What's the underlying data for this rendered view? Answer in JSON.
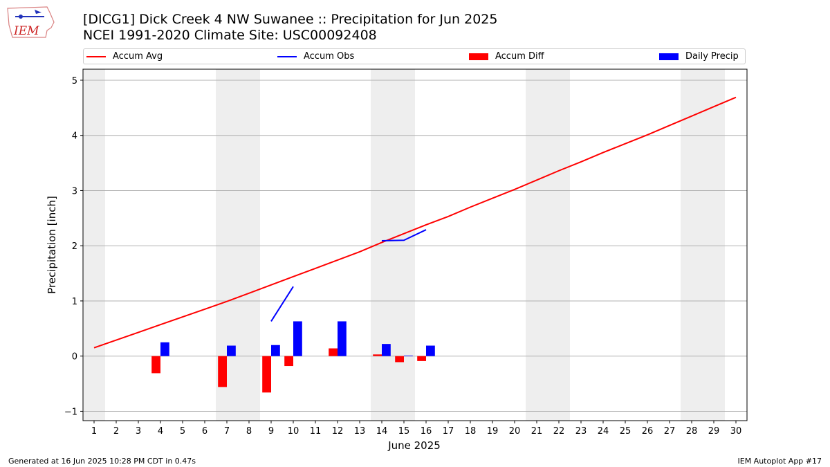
{
  "logo": {
    "text": "IEM"
  },
  "title_line1": "[DICG1] Dick Creek 4 NW Suwanee :: Precipitation for Jun 2025",
  "title_line2": "NCEI 1991-2020 Climate Site: USC00092408",
  "footer_left": "Generated at 16 Jun 2025 10:28 PM CDT in 0.47s",
  "footer_right": "IEM Autoplot App #17",
  "colors": {
    "accum_avg": "#ff0000",
    "accum_obs": "#0000ff",
    "accum_diff": "#ff0000",
    "daily_precip": "#0000ff",
    "weekend": "#eeeeee",
    "grid": "#b0b0b0"
  },
  "chart_data": {
    "type": "bar",
    "xlabel": "June 2025",
    "ylabel": "Precipitation [inch]",
    "xlim": [
      0.5,
      30.5
    ],
    "ylim": [
      -1.17,
      5.2
    ],
    "yticks": [
      -1,
      0,
      1,
      2,
      3,
      4,
      5
    ],
    "xticks": [
      1,
      2,
      3,
      4,
      5,
      6,
      7,
      8,
      9,
      10,
      11,
      12,
      13,
      14,
      15,
      16,
      17,
      18,
      19,
      20,
      21,
      22,
      23,
      24,
      25,
      26,
      27,
      28,
      29,
      30
    ],
    "grid": "y",
    "legend_placement": "top, above plot",
    "weekend_days": [
      1,
      7,
      8,
      14,
      15,
      21,
      22,
      28,
      29
    ],
    "series": [
      {
        "name": "Accum Avg",
        "kind": "line",
        "x": [
          1,
          2,
          3,
          4,
          5,
          6,
          7,
          8,
          9,
          10,
          11,
          12,
          13,
          14,
          15,
          16,
          17,
          18,
          19,
          20,
          21,
          22,
          23,
          24,
          25,
          26,
          27,
          28,
          29,
          30
        ],
        "values": [
          0.15,
          0.29,
          0.43,
          0.57,
          0.71,
          0.85,
          0.99,
          1.14,
          1.29,
          1.44,
          1.59,
          1.74,
          1.89,
          2.06,
          2.22,
          2.38,
          2.53,
          2.7,
          2.86,
          3.02,
          3.19,
          3.36,
          3.52,
          3.69,
          3.85,
          4.01,
          4.18,
          4.35,
          4.52,
          4.69
        ]
      },
      {
        "name": "Accum Obs",
        "kind": "line",
        "segments": [
          {
            "x": [
              9,
              10
            ],
            "values": [
              0.63,
              1.26
            ]
          },
          {
            "x": [
              14,
              15,
              16
            ],
            "values": [
              2.09,
              2.1,
              2.29
            ]
          }
        ]
      },
      {
        "name": "Accum Diff",
        "kind": "bar",
        "x": [
          4,
          7,
          9,
          10,
          12,
          14,
          15,
          16
        ],
        "values": [
          -0.31,
          -0.56,
          -0.66,
          -0.18,
          0.14,
          0.03,
          -0.11,
          -0.09
        ]
      },
      {
        "name": "Daily Precip",
        "kind": "bar",
        "x": [
          4,
          7,
          9,
          10,
          12,
          14,
          15,
          16
        ],
        "values": [
          0.25,
          0.19,
          0.2,
          0.63,
          0.63,
          0.22,
          0.01,
          0.19
        ]
      }
    ]
  }
}
